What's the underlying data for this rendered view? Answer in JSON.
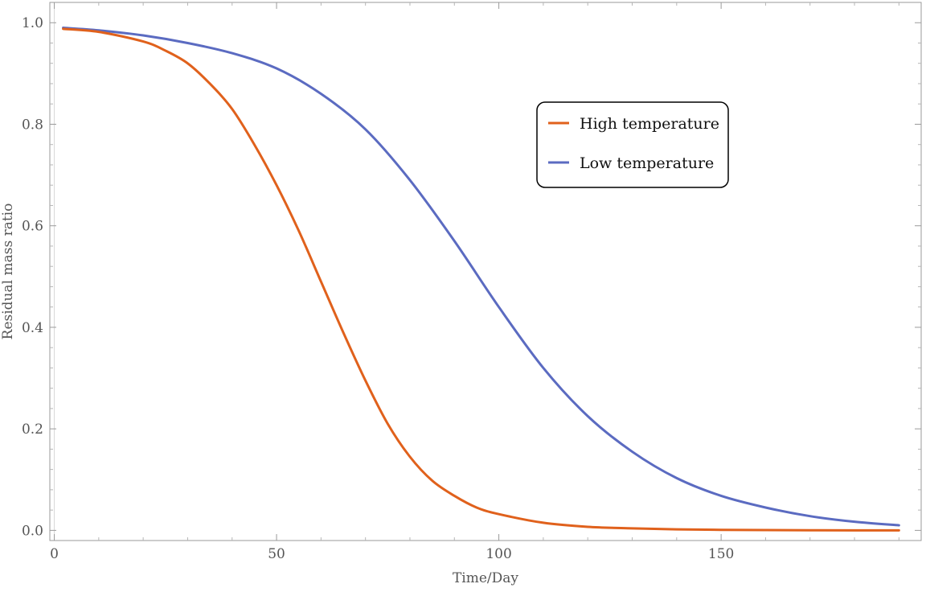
{
  "chart_data": {
    "type": "line",
    "title": "",
    "xlabel": "Time/Day",
    "ylabel": "Residual mass ratio",
    "xlim": [
      -1,
      195
    ],
    "ylim": [
      -0.02,
      1.04
    ],
    "xticks": [
      0,
      50,
      100,
      150
    ],
    "yticks": [
      0.0,
      0.2,
      0.4,
      0.6,
      0.8,
      1.0
    ],
    "ytick_labels": [
      "0.0",
      "0.2",
      "0.4",
      "0.6",
      "0.8",
      "1.0"
    ],
    "grid": false,
    "legend_position": "upper-right",
    "series": [
      {
        "name": "High temperature",
        "color": "#e0611c",
        "x": [
          2,
          10,
          20,
          25,
          30,
          35,
          40,
          45,
          50,
          55,
          60,
          65,
          70,
          75,
          80,
          85,
          90,
          95,
          100,
          110,
          120,
          130,
          140,
          150,
          160,
          170,
          180,
          190
        ],
        "y": [
          0.988,
          0.982,
          0.963,
          0.945,
          0.92,
          0.88,
          0.83,
          0.76,
          0.68,
          0.59,
          0.49,
          0.39,
          0.295,
          0.21,
          0.145,
          0.098,
          0.068,
          0.045,
          0.032,
          0.015,
          0.007,
          0.004,
          0.002,
          0.001,
          0.0005,
          0.0002,
          0.0001,
          0.0
        ]
      },
      {
        "name": "Low temperature",
        "color": "#5b6bc1",
        "x": [
          2,
          10,
          20,
          30,
          40,
          50,
          60,
          70,
          80,
          90,
          100,
          110,
          120,
          130,
          140,
          150,
          160,
          170,
          180,
          190
        ],
        "y": [
          0.99,
          0.985,
          0.975,
          0.96,
          0.94,
          0.91,
          0.86,
          0.79,
          0.69,
          0.57,
          0.44,
          0.32,
          0.225,
          0.155,
          0.103,
          0.068,
          0.045,
          0.028,
          0.017,
          0.01
        ]
      }
    ]
  }
}
